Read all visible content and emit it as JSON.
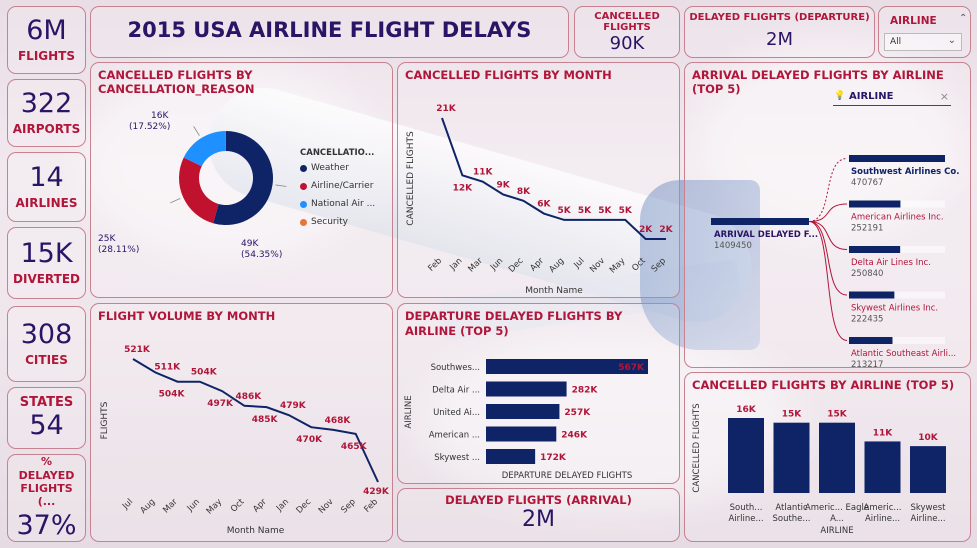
{
  "title": "2015 USA AIRLINE FLIGHT DELAYS",
  "kpis": [
    {
      "value": "6M",
      "label": "FLIGHTS"
    },
    {
      "value": "322",
      "label": "AIRPORTS"
    },
    {
      "value": "14",
      "label": "AIRLINES"
    },
    {
      "value": "15K",
      "label": "DIVERTED"
    },
    {
      "value": "308",
      "label": "CITIES"
    },
    {
      "value": "54",
      "label": "STATES"
    },
    {
      "value": "37%",
      "label": "% DELAYED FLIGHTS (..."
    }
  ],
  "cancelled": {
    "label": "CANCELLED FLIGHTS",
    "value": "90K"
  },
  "delayed_departure": {
    "label": "DELAYED FLIGHTS (DEPARTURE)",
    "value": "2M"
  },
  "delayed_arrival": {
    "label": "DELAYED FLIGHTS (ARRIVAL)",
    "value": "2M"
  },
  "slicer": {
    "label": "AIRLINE",
    "value": "All"
  },
  "colors": {
    "navy": "#0f2466",
    "red": "#c0122e",
    "blue": "#1e90ff",
    "orange": "#e8743b",
    "accent": "#b0163a",
    "title": "#2a1466"
  },
  "chart_data": [
    {
      "type": "pie",
      "title": "CANCELLED FLIGHTS BY CANCELLATION_REASON",
      "legend_title": "CANCELLATIO...",
      "legend_position": "right",
      "categories": [
        "Weather",
        "Airline/Carrier",
        "National Air ...",
        "Security"
      ],
      "values": [
        49,
        25,
        16,
        0.02
      ],
      "value_labels": [
        "49K",
        "25K",
        "16K",
        ""
      ],
      "percent_labels": [
        "(54.35%)",
        "(28.11%)",
        "(17.52%)",
        ""
      ],
      "colors": [
        "#0f2466",
        "#c0122e",
        "#1e90ff",
        "#e8743b"
      ]
    },
    {
      "type": "line",
      "title": "CANCELLED FLIGHTS BY MONTH",
      "xlabel": "Month Name",
      "ylabel": "CANCELLED FLIGHTS",
      "categories": [
        "Feb",
        "Jan",
        "Mar",
        "Jun",
        "Dec",
        "Apr",
        "Aug",
        "Jul",
        "Nov",
        "May",
        "Oct",
        "Sep"
      ],
      "values": [
        21,
        12,
        11,
        9,
        8,
        6,
        5,
        5,
        5,
        5,
        2,
        2
      ],
      "labels": [
        "21K",
        "12K",
        "11K",
        "9K",
        "8K",
        "6K",
        "5K",
        "5K",
        "5K",
        "5K",
        "2K",
        "2K"
      ]
    },
    {
      "type": "line",
      "title": "FLIGHT VOLUME BY MONTH",
      "xlabel": "Month Name",
      "ylabel": "FLIGHTS",
      "categories": [
        "Jul",
        "Aug",
        "Mar",
        "Jun",
        "May",
        "Oct",
        "Apr",
        "Jan",
        "Dec",
        "Nov",
        "Sep",
        "Feb"
      ],
      "values": [
        521,
        511,
        504,
        504,
        497,
        486,
        485,
        479,
        470,
        468,
        465,
        429
      ],
      "labels": [
        "521K",
        "511K",
        "504K",
        "504K",
        "497K",
        "486K",
        "485K",
        "479K",
        "470K",
        "468K",
        "465K",
        "429K"
      ]
    },
    {
      "type": "bar",
      "orientation": "horizontal",
      "title": "DEPARTURE DELAYED FLIGHTS BY AIRLINE (TOP 5)",
      "xlabel": "DEPARTURE DELAYED FLIGHTS",
      "ylabel": "AIRLINE",
      "categories": [
        "Southwes...",
        "Delta Air ...",
        "United Ai...",
        "American ...",
        "Skywest ..."
      ],
      "values": [
        567,
        282,
        257,
        246,
        172
      ],
      "labels": [
        "567K",
        "282K",
        "257K",
        "246K",
        "172K"
      ]
    },
    {
      "type": "bar",
      "title": "CANCELLED FLIGHTS BY AIRLINE (TOP 5)",
      "xlabel": "AIRLINE",
      "ylabel": "CANCELLED FLIGHTS",
      "categories": [
        "South... Airline...",
        "Atlantic Southe...",
        "Americ... Eagle A...",
        "Americ... Airline...",
        "Skywest Airline..."
      ],
      "values": [
        16,
        15,
        15,
        11,
        10
      ],
      "labels": [
        "16K",
        "15K",
        "15K",
        "11K",
        "10K"
      ]
    },
    {
      "type": "table",
      "title": "ARRIVAL DELAYED FLIGHTS BY AIRLINE (TOP 5)",
      "filter_label": "AIRLINE",
      "root": {
        "label": "ARRIVAL DELAYED F...",
        "value": 1409450
      },
      "nodes": [
        {
          "label": "Southwest Airlines Co.",
          "value": 470767
        },
        {
          "label": "American Airlines Inc.",
          "value": 252191
        },
        {
          "label": "Delta Air Lines Inc.",
          "value": 250840
        },
        {
          "label": "Skywest Airlines Inc.",
          "value": 222435
        },
        {
          "label": "Atlantic Southeast Airli...",
          "value": 213217
        }
      ]
    }
  ]
}
